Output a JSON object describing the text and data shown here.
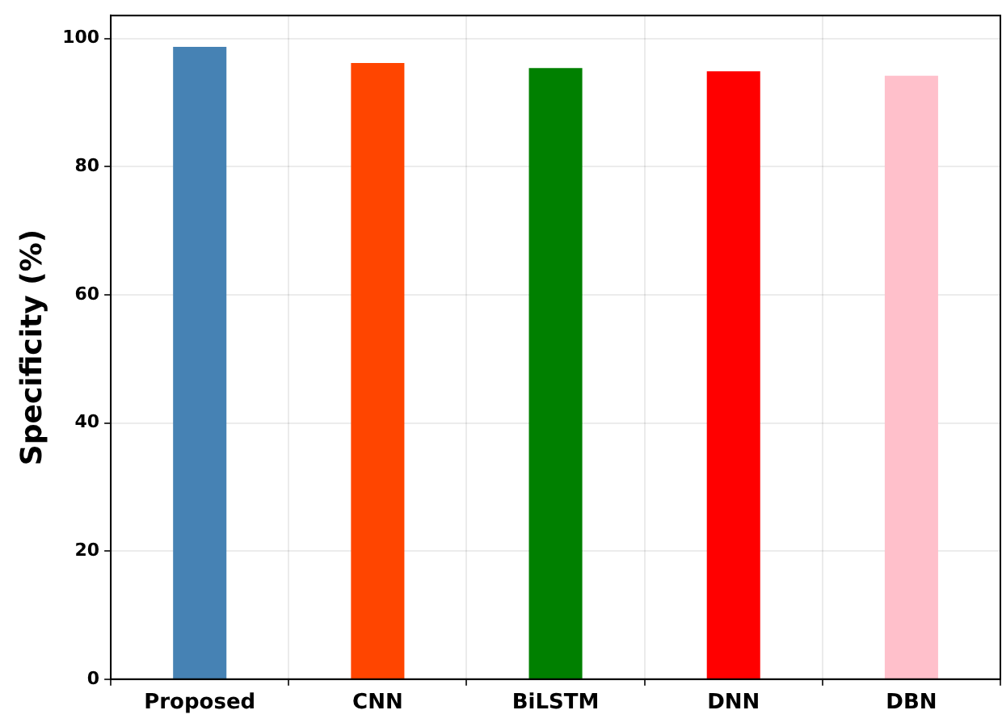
{
  "chart_data": {
    "type": "bar",
    "ylabel": "Specificity (%)",
    "categories": [
      "Proposed",
      "CNN",
      "BiLSTM",
      "DNN",
      "DBN"
    ],
    "values": [
      98.7,
      96.2,
      95.4,
      94.9,
      94.2
    ],
    "colors": [
      "#4682b4",
      "#ff4500",
      "#008000",
      "#ff0000",
      "#ffc0cb"
    ],
    "ylim": [
      0,
      103.6
    ],
    "yticks": [
      0,
      20,
      40,
      60,
      80,
      100
    ],
    "grid": true
  }
}
